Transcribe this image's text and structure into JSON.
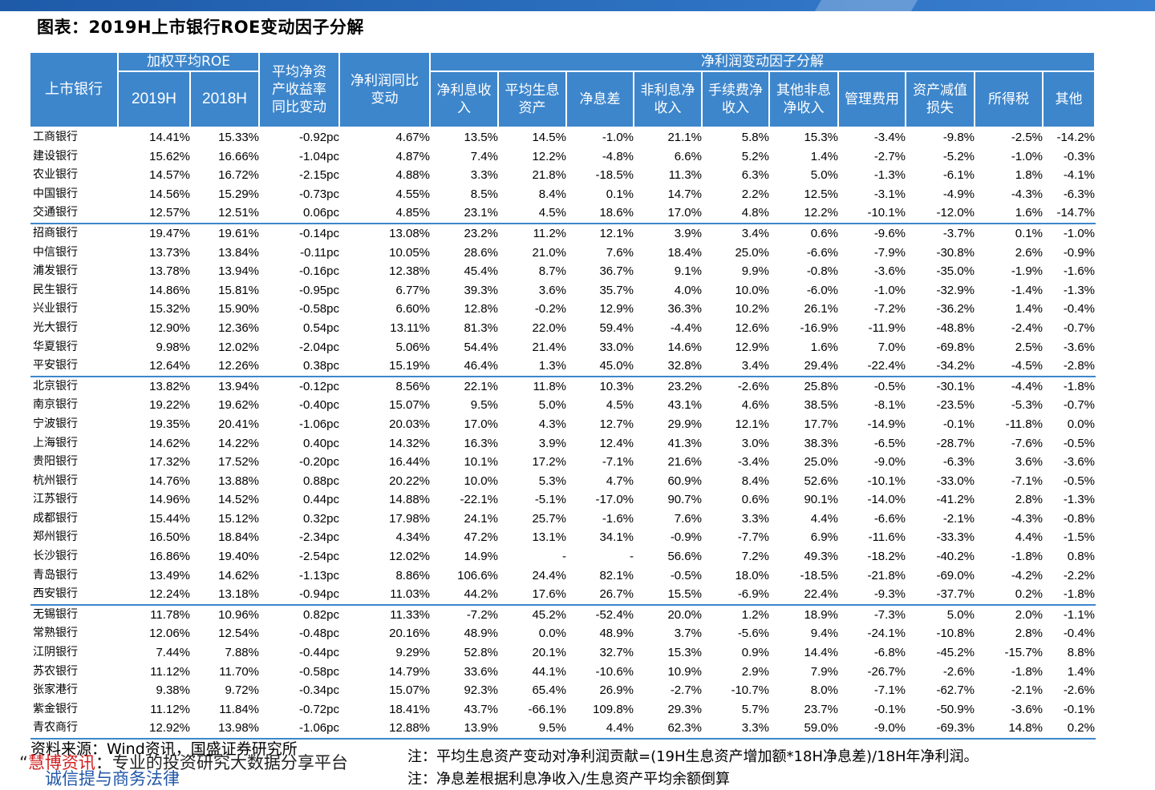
{
  "title": "图表：2019H上市银行ROE变动因子分解",
  "colors": {
    "header_bg": "#3d86cc",
    "top_bar": "#1e5aa8",
    "brand_red": "#d21f1f"
  },
  "header": {
    "bank": "上市银行",
    "roe_group": "加权平均ROE",
    "roe_2019": "2019H",
    "roe_2018": "2018H",
    "avg_net_asset_l1": "平均净资",
    "avg_net_asset_l2": "产收益率",
    "avg_net_asset_l3": "同比变动",
    "np_yoy_l1": "净利润同比",
    "np_yoy_l2": "变动",
    "factor_group": "净利润变动因子分解",
    "factors": [
      {
        "l1": "净利息收",
        "l2": "入"
      },
      {
        "l1": "平均生息",
        "l2": "资产"
      },
      {
        "l1": "净息差",
        "l2": ""
      },
      {
        "l1": "非利息净",
        "l2": "收入"
      },
      {
        "l1": "手续费净",
        "l2": "收入"
      },
      {
        "l1": "其他非息",
        "l2": "净收入"
      },
      {
        "l1": "管理费用",
        "l2": ""
      },
      {
        "l1": "资产减值",
        "l2": "损失"
      },
      {
        "l1": "所得税",
        "l2": ""
      },
      {
        "l1": "其他",
        "l2": ""
      }
    ]
  },
  "rows": [
    [
      "工商银行",
      "14.41%",
      "15.33%",
      "-0.92pc",
      "4.67%",
      "13.5%",
      "14.5%",
      "-1.0%",
      "21.1%",
      "5.8%",
      "15.3%",
      "-3.4%",
      "-9.8%",
      "-2.5%",
      "-14.2%"
    ],
    [
      "建设银行",
      "15.62%",
      "16.66%",
      "-1.04pc",
      "4.87%",
      "7.4%",
      "12.2%",
      "-4.8%",
      "6.6%",
      "5.2%",
      "1.4%",
      "-2.7%",
      "-5.2%",
      "-1.0%",
      "-0.3%"
    ],
    [
      "农业银行",
      "14.57%",
      "16.72%",
      "-2.15pc",
      "4.88%",
      "3.3%",
      "21.8%",
      "-18.5%",
      "11.3%",
      "6.3%",
      "5.0%",
      "-1.3%",
      "-6.1%",
      "1.8%",
      "-4.1%"
    ],
    [
      "中国银行",
      "14.56%",
      "15.29%",
      "-0.73pc",
      "4.55%",
      "8.5%",
      "8.4%",
      "0.1%",
      "14.7%",
      "2.2%",
      "12.5%",
      "-3.1%",
      "-4.9%",
      "-4.3%",
      "-6.3%"
    ],
    [
      "交通银行",
      "12.57%",
      "12.51%",
      "0.06pc",
      "4.85%",
      "23.1%",
      "4.5%",
      "18.6%",
      "17.0%",
      "4.8%",
      "12.2%",
      "-10.1%",
      "-12.0%",
      "1.6%",
      "-14.7%"
    ],
    [
      "招商银行",
      "19.47%",
      "19.61%",
      "-0.14pc",
      "13.08%",
      "23.2%",
      "11.2%",
      "12.1%",
      "3.9%",
      "3.4%",
      "0.6%",
      "-9.6%",
      "-3.7%",
      "0.1%",
      "-1.0%"
    ],
    [
      "中信银行",
      "13.73%",
      "13.84%",
      "-0.11pc",
      "10.05%",
      "28.6%",
      "21.0%",
      "7.6%",
      "18.4%",
      "25.0%",
      "-6.6%",
      "-7.9%",
      "-30.8%",
      "2.6%",
      "-0.9%"
    ],
    [
      "浦发银行",
      "13.78%",
      "13.94%",
      "-0.16pc",
      "12.38%",
      "45.4%",
      "8.7%",
      "36.7%",
      "9.1%",
      "9.9%",
      "-0.8%",
      "-3.6%",
      "-35.0%",
      "-1.9%",
      "-1.6%"
    ],
    [
      "民生银行",
      "14.86%",
      "15.81%",
      "-0.95pc",
      "6.77%",
      "39.3%",
      "3.6%",
      "35.7%",
      "4.0%",
      "10.0%",
      "-6.0%",
      "-1.0%",
      "-32.9%",
      "-1.4%",
      "-1.3%"
    ],
    [
      "兴业银行",
      "15.32%",
      "15.90%",
      "-0.58pc",
      "6.60%",
      "12.8%",
      "-0.2%",
      "12.9%",
      "36.3%",
      "10.2%",
      "26.1%",
      "-7.2%",
      "-36.2%",
      "1.4%",
      "-0.4%"
    ],
    [
      "光大银行",
      "12.90%",
      "12.36%",
      "0.54pc",
      "13.11%",
      "81.3%",
      "22.0%",
      "59.4%",
      "-4.4%",
      "12.6%",
      "-16.9%",
      "-11.9%",
      "-48.8%",
      "-2.4%",
      "-0.7%"
    ],
    [
      "华夏银行",
      "9.98%",
      "12.02%",
      "-2.04pc",
      "5.06%",
      "54.4%",
      "21.4%",
      "33.0%",
      "14.6%",
      "12.9%",
      "1.6%",
      "7.0%",
      "-69.8%",
      "2.5%",
      "-3.6%"
    ],
    [
      "平安银行",
      "12.64%",
      "12.26%",
      "0.38pc",
      "15.19%",
      "46.4%",
      "1.3%",
      "45.0%",
      "32.8%",
      "3.4%",
      "29.4%",
      "-22.4%",
      "-34.2%",
      "-4.5%",
      "-2.8%"
    ],
    [
      "北京银行",
      "13.82%",
      "13.94%",
      "-0.12pc",
      "8.56%",
      "22.1%",
      "11.8%",
      "10.3%",
      "23.2%",
      "-2.6%",
      "25.8%",
      "-0.5%",
      "-30.1%",
      "-4.4%",
      "-1.8%"
    ],
    [
      "南京银行",
      "19.22%",
      "19.62%",
      "-0.40pc",
      "15.07%",
      "9.5%",
      "5.0%",
      "4.5%",
      "43.1%",
      "4.6%",
      "38.5%",
      "-8.1%",
      "-23.5%",
      "-5.3%",
      "-0.7%"
    ],
    [
      "宁波银行",
      "19.35%",
      "20.41%",
      "-1.06pc",
      "20.03%",
      "17.0%",
      "4.3%",
      "12.7%",
      "29.9%",
      "12.1%",
      "17.7%",
      "-14.9%",
      "-0.1%",
      "-11.8%",
      "0.0%"
    ],
    [
      "上海银行",
      "14.62%",
      "14.22%",
      "0.40pc",
      "14.32%",
      "16.3%",
      "3.9%",
      "12.4%",
      "41.3%",
      "3.0%",
      "38.3%",
      "-6.5%",
      "-28.7%",
      "-7.6%",
      "-0.5%"
    ],
    [
      "贵阳银行",
      "17.32%",
      "17.52%",
      "-0.20pc",
      "16.44%",
      "10.1%",
      "17.2%",
      "-7.1%",
      "21.6%",
      "-3.4%",
      "25.0%",
      "-9.0%",
      "-6.3%",
      "3.6%",
      "-3.6%"
    ],
    [
      "杭州银行",
      "14.76%",
      "13.88%",
      "0.88pc",
      "20.22%",
      "10.0%",
      "5.3%",
      "4.7%",
      "60.9%",
      "8.4%",
      "52.6%",
      "-10.1%",
      "-33.0%",
      "-7.1%",
      "-0.5%"
    ],
    [
      "江苏银行",
      "14.96%",
      "14.52%",
      "0.44pc",
      "14.88%",
      "-22.1%",
      "-5.1%",
      "-17.0%",
      "90.7%",
      "0.6%",
      "90.1%",
      "-14.0%",
      "-41.2%",
      "2.8%",
      "-1.3%"
    ],
    [
      "成都银行",
      "15.44%",
      "15.12%",
      "0.32pc",
      "17.98%",
      "24.1%",
      "25.7%",
      "-1.6%",
      "7.6%",
      "3.3%",
      "4.4%",
      "-6.6%",
      "-2.1%",
      "-4.3%",
      "-0.8%"
    ],
    [
      "郑州银行",
      "16.50%",
      "18.84%",
      "-2.34pc",
      "4.34%",
      "47.2%",
      "13.1%",
      "34.1%",
      "-0.9%",
      "-7.7%",
      "6.9%",
      "-11.6%",
      "-33.3%",
      "4.4%",
      "-1.5%"
    ],
    [
      "长沙银行",
      "16.86%",
      "19.40%",
      "-2.54pc",
      "12.02%",
      "14.9%",
      "-",
      "-",
      "56.6%",
      "7.2%",
      "49.3%",
      "-18.2%",
      "-40.2%",
      "-1.8%",
      "0.8%"
    ],
    [
      "青岛银行",
      "13.49%",
      "14.62%",
      "-1.13pc",
      "8.86%",
      "106.6%",
      "24.4%",
      "82.1%",
      "-0.5%",
      "18.0%",
      "-18.5%",
      "-21.8%",
      "-69.0%",
      "-4.2%",
      "-2.2%"
    ],
    [
      "西安银行",
      "12.24%",
      "13.18%",
      "-0.94pc",
      "11.03%",
      "44.2%",
      "17.6%",
      "26.7%",
      "15.5%",
      "-6.9%",
      "22.4%",
      "-9.3%",
      "-37.7%",
      "0.2%",
      "-1.8%"
    ],
    [
      "无锡银行",
      "11.78%",
      "10.96%",
      "0.82pc",
      "11.33%",
      "-7.2%",
      "45.2%",
      "-52.4%",
      "20.0%",
      "1.2%",
      "18.9%",
      "-7.3%",
      "5.0%",
      "2.0%",
      "-1.1%"
    ],
    [
      "常熟银行",
      "12.06%",
      "12.54%",
      "-0.48pc",
      "20.16%",
      "48.9%",
      "0.0%",
      "48.9%",
      "3.7%",
      "-5.6%",
      "9.4%",
      "-24.1%",
      "-10.8%",
      "2.8%",
      "-0.4%"
    ],
    [
      "江阴银行",
      "7.44%",
      "7.88%",
      "-0.44pc",
      "9.29%",
      "52.8%",
      "20.1%",
      "32.7%",
      "15.3%",
      "0.9%",
      "14.4%",
      "-6.8%",
      "-45.2%",
      "-15.7%",
      "8.8%"
    ],
    [
      "苏农银行",
      "11.12%",
      "11.70%",
      "-0.58pc",
      "14.79%",
      "33.6%",
      "44.1%",
      "-10.6%",
      "10.9%",
      "2.9%",
      "7.9%",
      "-26.7%",
      "-2.6%",
      "-1.8%",
      "1.4%"
    ],
    [
      "张家港行",
      "9.38%",
      "9.72%",
      "-0.34pc",
      "15.07%",
      "92.3%",
      "65.4%",
      "26.9%",
      "-2.7%",
      "-10.7%",
      "8.0%",
      "-7.1%",
      "-62.7%",
      "-2.1%",
      "-2.6%"
    ],
    [
      "紫金银行",
      "11.12%",
      "11.84%",
      "-0.72pc",
      "18.41%",
      "43.7%",
      "-66.1%",
      "109.8%",
      "29.3%",
      "5.7%",
      "23.7%",
      "-0.1%",
      "-50.9%",
      "-3.6%",
      "-0.1%"
    ],
    [
      "青农商行",
      "12.92%",
      "13.98%",
      "-1.06pc",
      "12.88%",
      "13.9%",
      "9.5%",
      "4.4%",
      "62.3%",
      "3.3%",
      "59.0%",
      "-9.0%",
      "-69.3%",
      "14.8%",
      "0.2%"
    ]
  ],
  "separator_before_rows": [
    5,
    13,
    25
  ],
  "footer": {
    "source": "资料来源：Wind资讯，国盛证券研究所",
    "note1": "注：平均生息资产变动对净利润贡献=(19H生息资产增加额*18H净息差)/18H年净利润。",
    "note2": "注：净息差根据利息净收入/生息资产平均余额倒算",
    "watermark_quote": "“",
    "watermark_brand": "慧博资讯",
    "watermark_rest": "：专业的投资研究大数据分享平台",
    "blue_text": "诚信提与商务法律"
  }
}
